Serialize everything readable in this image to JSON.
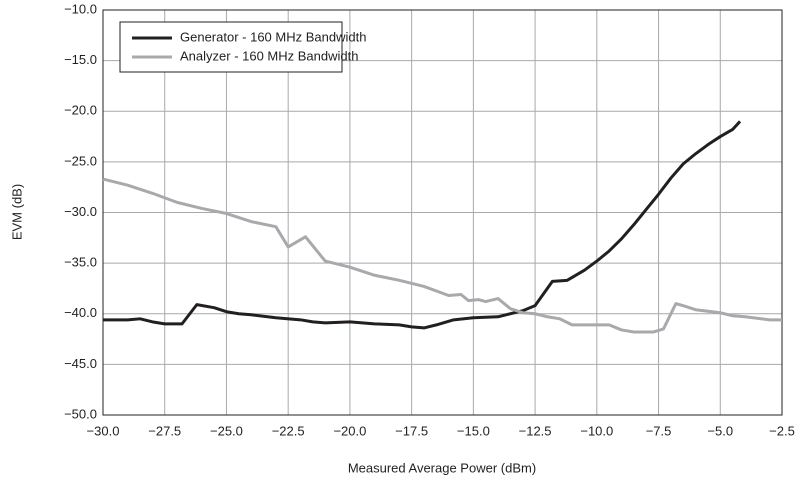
{
  "chart_data": {
    "type": "line",
    "xlabel": "Measured Average Power (dBm)",
    "ylabel": "EVM (dB)",
    "xlim": [
      -30,
      -2.5
    ],
    "ylim": [
      -50,
      -10
    ],
    "xticks": [
      {
        "value": -30,
        "label": "−30.0"
      },
      {
        "value": -27.5,
        "label": "−27.5"
      },
      {
        "value": -25,
        "label": "−25.0"
      },
      {
        "value": -22.5,
        "label": "−22.5"
      },
      {
        "value": -20,
        "label": "−20.0"
      },
      {
        "value": -17.5,
        "label": "−17.5"
      },
      {
        "value": -15,
        "label": "−15.0"
      },
      {
        "value": -12.5,
        "label": "−12.5"
      },
      {
        "value": -10,
        "label": "−10.0"
      },
      {
        "value": -7.5,
        "label": "−7.5"
      },
      {
        "value": -5,
        "label": "−5.0"
      },
      {
        "value": -2.5,
        "label": "−2.5"
      }
    ],
    "yticks": [
      {
        "value": -10,
        "label": "−10.0"
      },
      {
        "value": -15,
        "label": "−15.0"
      },
      {
        "value": -20,
        "label": "−20.0"
      },
      {
        "value": -25,
        "label": "−25.0"
      },
      {
        "value": -30,
        "label": "−30.0"
      },
      {
        "value": -35,
        "label": "−35.0"
      },
      {
        "value": -40,
        "label": "−40.0"
      },
      {
        "value": -45,
        "label": "−45.0"
      },
      {
        "value": -50,
        "label": "−50.0"
      }
    ],
    "grid": true,
    "legend": "upper left",
    "series": [
      {
        "name": "Generator - 160 MHz Bandwidth",
        "color": "#231f20",
        "x": [
          -30,
          -29,
          -28.5,
          -28,
          -27.5,
          -26.8,
          -26.2,
          -25.5,
          -25,
          -24.5,
          -24,
          -23,
          -22,
          -21.5,
          -21,
          -20,
          -19,
          -18,
          -17.5,
          -17,
          -16.5,
          -15.8,
          -15,
          -14,
          -13,
          -12.5,
          -11.8,
          -11.2,
          -10.5,
          -10,
          -9.5,
          -9,
          -8.5,
          -8,
          -7.5,
          -7,
          -6.5,
          -6,
          -5.5,
          -5,
          -4.5,
          -4.2
        ],
        "values": [
          -40.6,
          -40.6,
          -40.5,
          -40.8,
          -41,
          -41,
          -39.1,
          -39.4,
          -39.8,
          -40,
          -40.1,
          -40.4,
          -40.6,
          -40.8,
          -40.9,
          -40.8,
          -41,
          -41.1,
          -41.3,
          -41.4,
          -41.1,
          -40.6,
          -40.4,
          -40.3,
          -39.7,
          -39.2,
          -36.8,
          -36.7,
          -35.7,
          -34.8,
          -33.8,
          -32.6,
          -31.2,
          -29.7,
          -28.2,
          -26.6,
          -25.2,
          -24.2,
          -23.3,
          -22.5,
          -21.8,
          -21
        ]
      },
      {
        "name": "Analyzer - 160 MHz Bandwidth",
        "color": "#a7a9ac",
        "x": [
          -30,
          -29,
          -28,
          -27,
          -26,
          -25,
          -24,
          -23,
          -22.5,
          -21.8,
          -21,
          -20,
          -19,
          -18,
          -17,
          -16,
          -15.5,
          -15.2,
          -14.8,
          -14.5,
          -14,
          -13.5,
          -13,
          -12.5,
          -12,
          -11.5,
          -11,
          -10,
          -9.5,
          -9,
          -8.5,
          -7.7,
          -7.3,
          -6.8,
          -6.5,
          -6,
          -5,
          -4.5,
          -4,
          -3,
          -2.5
        ],
        "values": [
          -26.7,
          -27.3,
          -28.1,
          -29,
          -29.6,
          -30.1,
          -30.9,
          -31.4,
          -33.4,
          -32.4,
          -34.8,
          -35.4,
          -36.2,
          -36.7,
          -37.3,
          -38.2,
          -38.1,
          -38.7,
          -38.6,
          -38.8,
          -38.5,
          -39.5,
          -39.9,
          -40,
          -40.3,
          -40.5,
          -41.1,
          -41.1,
          -41.1,
          -41.6,
          -41.8,
          -41.8,
          -41.5,
          -39,
          -39.2,
          -39.6,
          -39.9,
          -40.2,
          -40.3,
          -40.6,
          -40.6
        ]
      }
    ]
  }
}
